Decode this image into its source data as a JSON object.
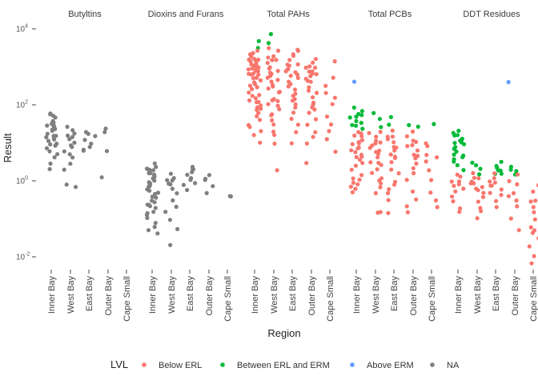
{
  "chart_data": {
    "type": "scatter",
    "ylabel": "Result",
    "xlabel": "Region",
    "y_scale": "log10",
    "ylim": [
      0.006,
      100000
    ],
    "y_ticks": [
      {
        "value": 0.01,
        "label": "10",
        "sup": "-2"
      },
      {
        "value": 1,
        "label": "10",
        "sup": "0"
      },
      {
        "value": 100,
        "label": "10",
        "sup": "2"
      },
      {
        "value": 10000,
        "label": "10",
        "sup": "4"
      }
    ],
    "grid": false,
    "legend_position": "bottom",
    "legend": {
      "title": "LVL",
      "entries": [
        {
          "key": "below",
          "name": "Below ERL",
          "color": "#F8766D"
        },
        {
          "key": "between",
          "name": "Between ERL and ERM",
          "color": "#00BA38"
        },
        {
          "key": "above",
          "name": "Above ERM",
          "color": "#619CFF"
        },
        {
          "key": "na",
          "name": "NA",
          "color": "#7F7F7F"
        }
      ]
    },
    "regions": [
      "Inner Bay",
      "West Bay",
      "East Bay",
      "Outer Bay",
      "Cape Small"
    ],
    "facets": [
      {
        "name": "Butyltins",
        "points": [
          [
            "Inner Bay",
            "na",
            [
              50,
              40,
              35,
              30,
              28,
              25,
              22,
              20,
              18,
              16,
              14,
              12,
              11,
              10,
              9,
              8,
              7,
              6,
              5,
              4,
              3,
              45,
              33,
              27,
              21,
              15,
              13,
              2,
              60,
              55
            ]
          ],
          [
            "West Bay",
            "na",
            [
              25,
              20,
              15,
              12,
              10,
              9,
              8,
              6,
              5,
              4,
              3,
              0.8,
              0.7,
              2,
              14,
              18
            ]
          ],
          [
            "East Bay",
            "na",
            [
              20,
              15,
              12,
              10,
              8,
              7,
              6,
              18
            ]
          ],
          [
            "Outer Bay",
            "na",
            [
              25,
              20,
              6,
              1.2
            ]
          ],
          [
            "Cape Small",
            "na",
            []
          ]
        ]
      },
      {
        "name": "Dioxins and Furans",
        "points": [
          [
            "Inner Bay",
            "na",
            [
              3,
              2.5,
              2,
              1.8,
              1.6,
              1.5,
              1.4,
              1.3,
              1.2,
              1.1,
              1,
              0.9,
              0.8,
              0.7,
              0.6,
              0.5,
              0.4,
              0.35,
              0.3,
              0.25,
              0.2,
              0.15,
              0.12,
              0.1,
              0.08,
              0.06,
              0.05,
              0.04,
              2.2,
              1.7,
              1.9,
              1.25,
              0.95,
              0.75,
              0.55,
              0.45,
              0.28,
              0.22,
              0.18,
              0.14
            ]
          ],
          [
            "West Bay",
            "na",
            [
              1.5,
              1.2,
              1,
              0.8,
              0.6,
              0.5,
              0.3,
              0.2,
              0.15,
              0.1,
              0.05,
              0.02,
              1.1,
              0.9
            ]
          ],
          [
            "East Bay",
            "na",
            [
              2.5,
              2,
              1.8,
              1.5,
              1.2,
              1,
              0.9,
              0.8,
              0.6,
              2.2
            ]
          ],
          [
            "Outer Bay",
            "na",
            [
              1.5,
              1,
              1.2,
              0.7,
              0.5
            ]
          ],
          [
            "Cape Small",
            "na",
            [
              0.4,
              0.38
            ]
          ]
        ]
      },
      {
        "name": "Total PAHs",
        "points": [
          [
            "Inner Bay",
            "between",
            [
              5000,
              3000
            ]
          ],
          [
            "Inner Bay",
            "below",
            [
              2000,
              1800,
              1600,
              1500,
              1400,
              1300,
              1200,
              1100,
              1000,
              950,
              900,
              850,
              800,
              750,
              700,
              650,
              600,
              550,
              500,
              450,
              400,
              350,
              300,
              250,
              200,
              180,
              160,
              140,
              120,
              100,
              90,
              80,
              70,
              60,
              50,
              40,
              30,
              25,
              20,
              15,
              10,
              1200,
              1600,
              2200,
              2500,
              900,
              700,
              500,
              300,
              150,
              110
            ]
          ],
          [
            "West Bay",
            "between",
            [
              7000,
              4000
            ]
          ],
          [
            "West Bay",
            "below",
            [
              3000,
              2500,
              2000,
              1800,
              1500,
              1200,
              1000,
              800,
              700,
              600,
              500,
              400,
              300,
              250,
              200,
              150,
              120,
              100,
              80,
              60,
              50,
              40,
              30,
              20,
              15,
              10,
              2,
              1500,
              900,
              650,
              450,
              350,
              220,
              130,
              95
            ]
          ],
          [
            "East Bay",
            "below",
            [
              3000,
              2500,
              2000,
              1500,
              1200,
              1000,
              900,
              800,
              700,
              600,
              500,
              400,
              300,
              250,
              200,
              150,
              100,
              80,
              60,
              40,
              30,
              20,
              10,
              2000,
              1100,
              750,
              550,
              350,
              180,
              120
            ]
          ],
          [
            "Outer Bay",
            "below",
            [
              1500,
              1200,
              1000,
              900,
              800,
              700,
              600,
              500,
              400,
              300,
              200,
              150,
              100,
              80,
              60,
              40,
              30,
              20,
              15,
              10,
              3,
              900,
              750,
              650,
              450,
              250,
              120,
              70
            ]
          ],
          [
            "Cape Small",
            "below",
            [
              1500,
              500,
              300,
              200,
              150,
              100,
              50,
              30,
              20,
              12,
              6
            ]
          ]
        ]
      },
      {
        "name": "Total PCBs",
        "points": [
          [
            "Inner Bay",
            "between",
            [
              80,
              60,
              50,
              45,
              40,
              35,
              30,
              28,
              25,
              50,
              65
            ]
          ],
          [
            "Inner Bay",
            "below",
            [
              20,
              18,
              15,
              12,
              10,
              9,
              8,
              7,
              6,
              5,
              4,
              3,
              2.5,
              2,
              1.5,
              1.2,
              1,
              0.9,
              0.8,
              0.7,
              0.6,
              0.5,
              14,
              11,
              6.5,
              4.5,
              3.5
            ]
          ],
          [
            "Inner Bay",
            "above",
            [
              400
            ]
          ],
          [
            "West Bay",
            "between",
            [
              60,
              40,
              25
            ]
          ],
          [
            "West Bay",
            "below",
            [
              20,
              15,
              12,
              10,
              8,
              7,
              6,
              5,
              4,
              3,
              2.5,
              2,
              1.5,
              1.2,
              1,
              0.9,
              0.7,
              0.5,
              0.15,
              0.14,
              18,
              9,
              5.5,
              3.2
            ]
          ],
          [
            "East Bay",
            "between",
            [
              50,
              30
            ]
          ],
          [
            "East Bay",
            "below",
            [
              20,
              15,
              12,
              10,
              8,
              6,
              5,
              4,
              3,
              2,
              1.5,
              1,
              0.8,
              0.6,
              0.5,
              0.3,
              0.15,
              14,
              7,
              4.5
            ]
          ],
          [
            "Outer Bay",
            "between",
            [
              30,
              25
            ]
          ],
          [
            "Outer Bay",
            "below",
            [
              20,
              15,
              12,
              10,
              8,
              6,
              5,
              4,
              3,
              2,
              1.5,
              1,
              0.5,
              0.3,
              0.2,
              0.15,
              9,
              4.5
            ]
          ],
          [
            "Cape Small",
            "between",
            [
              30
            ]
          ],
          [
            "Cape Small",
            "below",
            [
              10,
              8,
              5,
              4,
              3,
              2,
              1,
              0.5,
              0.3,
              0.2
            ]
          ]
        ]
      },
      {
        "name": "DDT Residues",
        "points": [
          [
            "Inner Bay",
            "between",
            [
              20,
              18,
              15,
              12,
              10,
              9,
              8,
              7,
              6,
              5,
              4,
              3,
              2.5,
              2,
              4.5,
              3.5,
              11,
              13,
              16
            ]
          ],
          [
            "Inner Bay",
            "below",
            [
              1.5,
              1.2,
              1,
              0.8,
              0.6,
              0.5,
              0.4,
              0.3,
              0.2,
              0.15,
              0.9,
              0.7
            ]
          ],
          [
            "West Bay",
            "between",
            [
              3,
              2.5,
              2,
              1.5
            ]
          ],
          [
            "West Bay",
            "below",
            [
              1.5,
              1.2,
              1,
              0.9,
              0.8,
              0.7,
              0.6,
              0.5,
              0.4,
              0.3,
              0.2,
              0.15,
              0.1,
              1.1,
              0.55
            ]
          ],
          [
            "East Bay",
            "between",
            [
              3,
              2.5,
              2,
              1.8,
              1.5,
              2.2,
              1.6
            ]
          ],
          [
            "East Bay",
            "below",
            [
              1.5,
              1.2,
              1,
              0.8,
              0.6,
              0.5,
              0.4,
              0.3,
              0.2,
              0.9,
              0.7
            ]
          ],
          [
            "Outer Bay",
            "between",
            [
              2.5,
              2,
              1.5,
              1.8
            ]
          ],
          [
            "Outer Bay",
            "below",
            [
              1.5,
              1,
              0.8,
              0.5,
              0.3,
              0.2,
              0.1,
              0.05,
              0.4
            ]
          ],
          [
            "Outer Bay",
            "above",
            [
              400
            ]
          ],
          [
            "Cape Small",
            "below",
            [
              0.8,
              0.5,
              0.3,
              0.3,
              0.2,
              0.1,
              0.05,
              0.04,
              0.03,
              0.02,
              0.01,
              0.007,
              0.15,
              0.06
            ]
          ]
        ]
      }
    ]
  }
}
